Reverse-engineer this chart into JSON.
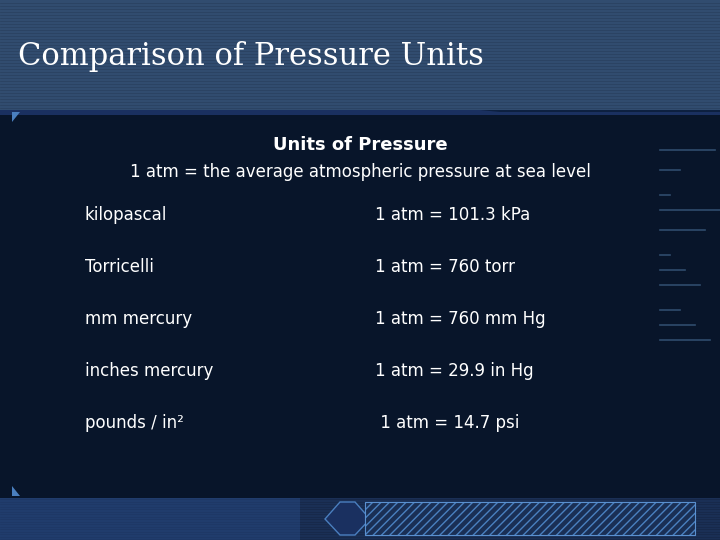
{
  "title": "Comparison of Pressure Units",
  "subtitle": "Units of Pressure",
  "definition": "1 atm = the average atmospheric pressure at sea level",
  "left_col": [
    "kilopascal",
    "Torricelli",
    "mm mercury",
    "inches mercury",
    "pounds / in²"
  ],
  "right_col": [
    "1 atm = 101.3 kPa",
    "1 atm = 760 torr",
    "1 atm = 760 mm Hg",
    "1 atm = 29.9 in Hg",
    " 1 atm = 14.7 psi"
  ],
  "bg_dark": "#060e1e",
  "bg_main": "#08152a",
  "title_band_color": "#2a4a72",
  "title_color": "#ffffff",
  "text_color": "#ffffff",
  "footer_color": "#1a2f55",
  "title_fontsize": 22,
  "subtitle_fontsize": 13,
  "def_fontsize": 12,
  "body_fontsize": 12
}
